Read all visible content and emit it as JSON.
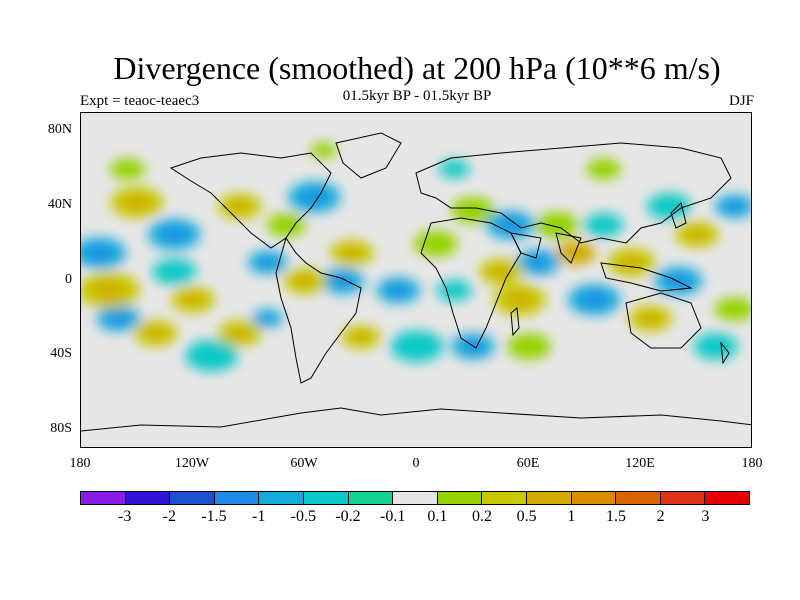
{
  "title": "Divergence (smoothed) at 200 hPa (10**6 m/s)",
  "subtitle": "01.5kyr BP - 01.5kyr BP",
  "experiment": "Expt = teaoc-teaec3",
  "season": "DJF",
  "y_axis": {
    "labels": [
      "80N",
      "40N",
      "0",
      "40S",
      "80S"
    ],
    "values": [
      80,
      40,
      0,
      -40,
      -80
    ]
  },
  "x_axis": {
    "labels": [
      "180",
      "120W",
      "60W",
      "0",
      "60E",
      "120E",
      "180"
    ],
    "values": [
      -180,
      -120,
      -60,
      0,
      60,
      120,
      180
    ]
  },
  "colorbar": {
    "colors": [
      "#8a1de6",
      "#3214d6",
      "#1e50d2",
      "#1e8ce6",
      "#14aadc",
      "#0ac8c8",
      "#14d296",
      "#e6e6e6",
      "#96d200",
      "#c8c800",
      "#d2aa00",
      "#dc8c00",
      "#dc6400",
      "#e03214",
      "#e60000"
    ],
    "labels": [
      "-3",
      "-2",
      "-1.5",
      "-1",
      "-0.5",
      "-0.2",
      "-0.1",
      "0.1",
      "0.2",
      "0.5",
      "1",
      "1.5",
      "2",
      "3"
    ]
  },
  "fields": {
    "pos": [
      {
        "lon": -150,
        "lat": 42,
        "r": 12,
        "v": 0.5
      },
      {
        "lon": -155,
        "lat": 60,
        "r": 8,
        "v": 0.2
      },
      {
        "lon": -165,
        "lat": -5,
        "r": 14,
        "v": 0.5
      },
      {
        "lon": -120,
        "lat": -10,
        "r": 10,
        "v": 0.5
      },
      {
        "lon": -140,
        "lat": -28,
        "r": 10,
        "v": 0.5
      },
      {
        "lon": -95,
        "lat": 40,
        "r": 10,
        "v": 0.5
      },
      {
        "lon": -70,
        "lat": 30,
        "r": 9,
        "v": 0.2
      },
      {
        "lon": -60,
        "lat": 0,
        "r": 10,
        "v": 0.5
      },
      {
        "lon": -95,
        "lat": -28,
        "r": 10,
        "v": 0.5
      },
      {
        "lon": -35,
        "lat": 15,
        "r": 10,
        "v": 0.5
      },
      {
        "lon": -30,
        "lat": -30,
        "r": 9,
        "v": 0.5
      },
      {
        "lon": 10,
        "lat": 20,
        "r": 10,
        "v": 0.2
      },
      {
        "lon": 30,
        "lat": 38,
        "r": 10,
        "v": 0.2
      },
      {
        "lon": 45,
        "lat": 5,
        "r": 10,
        "v": 0.5
      },
      {
        "lon": 55,
        "lat": -10,
        "r": 12,
        "v": 0.5
      },
      {
        "lon": 75,
        "lat": 30,
        "r": 10,
        "v": 0.2
      },
      {
        "lon": 85,
        "lat": 15,
        "r": 9,
        "v": 1
      },
      {
        "lon": 115,
        "lat": 10,
        "r": 11,
        "v": 0.5
      },
      {
        "lon": 125,
        "lat": -20,
        "r": 10,
        "v": 0.5
      },
      {
        "lon": 150,
        "lat": 25,
        "r": 10,
        "v": 0.5
      },
      {
        "lon": 170,
        "lat": -15,
        "r": 9,
        "v": 0.2
      },
      {
        "lon": 60,
        "lat": -35,
        "r": 10,
        "v": 0.2
      },
      {
        "lon": -50,
        "lat": 70,
        "r": 6,
        "v": 0.2
      },
      {
        "lon": 100,
        "lat": 60,
        "r": 8,
        "v": 0.2
      }
    ],
    "neg": [
      {
        "lon": -170,
        "lat": 15,
        "r": 12,
        "v": -0.5
      },
      {
        "lon": -130,
        "lat": 25,
        "r": 12,
        "v": -0.5
      },
      {
        "lon": -130,
        "lat": 5,
        "r": 10,
        "v": -0.2
      },
      {
        "lon": -160,
        "lat": -20,
        "r": 10,
        "v": -0.5
      },
      {
        "lon": -110,
        "lat": -40,
        "r": 12,
        "v": -0.2
      },
      {
        "lon": -80,
        "lat": 10,
        "r": 9,
        "v": -0.5
      },
      {
        "lon": -55,
        "lat": 45,
        "r": 12,
        "v": -0.5
      },
      {
        "lon": -40,
        "lat": 0,
        "r": 10,
        "v": -0.5
      },
      {
        "lon": -10,
        "lat": -5,
        "r": 10,
        "v": -0.5
      },
      {
        "lon": 0,
        "lat": -35,
        "r": 12,
        "v": -0.2
      },
      {
        "lon": 20,
        "lat": -5,
        "r": 8,
        "v": -0.2
      },
      {
        "lon": 50,
        "lat": 30,
        "r": 11,
        "v": -0.5
      },
      {
        "lon": 65,
        "lat": 10,
        "r": 10,
        "v": -0.5
      },
      {
        "lon": 95,
        "lat": -10,
        "r": 12,
        "v": -0.5
      },
      {
        "lon": 100,
        "lat": 30,
        "r": 9,
        "v": -0.2
      },
      {
        "lon": 135,
        "lat": 40,
        "r": 10,
        "v": -0.2
      },
      {
        "lon": 140,
        "lat": 0,
        "r": 11,
        "v": -0.5
      },
      {
        "lon": 160,
        "lat": -35,
        "r": 10,
        "v": -0.2
      },
      {
        "lon": 30,
        "lat": -35,
        "r": 10,
        "v": -0.5
      },
      {
        "lon": -80,
        "lat": -20,
        "r": 7,
        "v": -0.5
      },
      {
        "lon": 170,
        "lat": 40,
        "r": 9,
        "v": -0.5
      },
      {
        "lon": 20,
        "lat": 60,
        "r": 7,
        "v": -0.2
      }
    ]
  }
}
